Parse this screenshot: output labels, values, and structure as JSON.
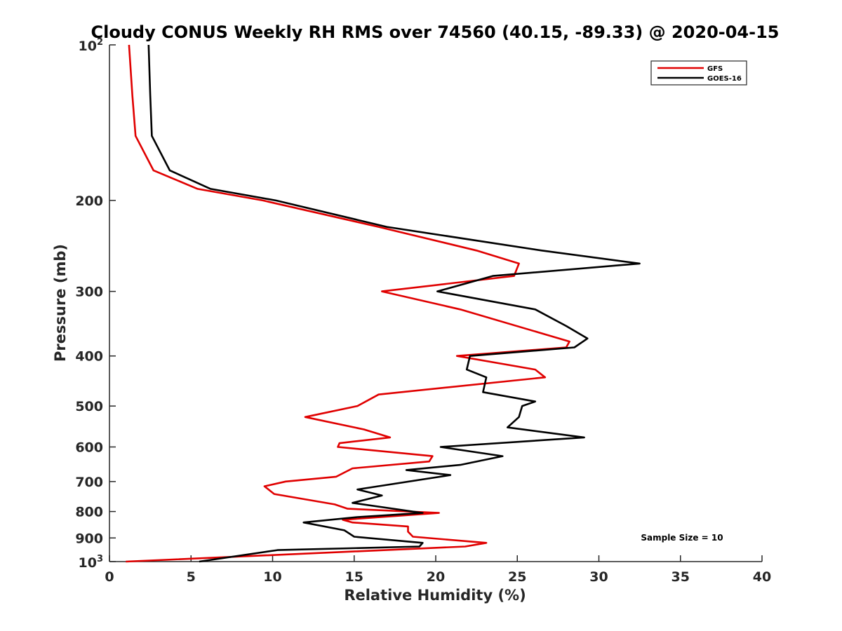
{
  "chart_data": {
    "type": "line",
    "title": "Cloudy CONUS Weekly RH RMS over 74560 (40.15, -89.33) @ 2020-04-15",
    "xlabel": "Relative Humidity (%)",
    "ylabel": "Pressure (mb)",
    "xlim": [
      0,
      40
    ],
    "ylim": [
      100,
      1000
    ],
    "y_scale": "log",
    "y_reversed": true,
    "grid": false,
    "legend_position": "top-right",
    "x_ticks": [
      "0",
      "5",
      "10",
      "15",
      "20",
      "25",
      "30",
      "35",
      "40"
    ],
    "y_ticks": [
      {
        "value": 100,
        "base": "10",
        "exp": "2"
      },
      {
        "value": 200,
        "label": "200"
      },
      {
        "value": 300,
        "label": "300"
      },
      {
        "value": 400,
        "label": "400"
      },
      {
        "value": 500,
        "label": "500"
      },
      {
        "value": 600,
        "label": "600"
      },
      {
        "value": 700,
        "label": "700"
      },
      {
        "value": 800,
        "label": "800"
      },
      {
        "value": 900,
        "label": "900"
      },
      {
        "value": 1000,
        "base": "10",
        "exp": "3"
      }
    ],
    "annotation": "Sample Size = 10",
    "series": [
      {
        "name": "GFS",
        "color": "#e00000",
        "points": [
          [
            1.2,
            100
          ],
          [
            1.4,
            125
          ],
          [
            1.6,
            150
          ],
          [
            2.7,
            175
          ],
          [
            5.4,
            190
          ],
          [
            9.4,
            200
          ],
          [
            16.5,
            225
          ],
          [
            22.5,
            250
          ],
          [
            25.1,
            265
          ],
          [
            24.8,
            280
          ],
          [
            16.7,
            300
          ],
          [
            21.5,
            325
          ],
          [
            28.2,
            375
          ],
          [
            28.0,
            385
          ],
          [
            21.3,
            400
          ],
          [
            26.1,
            425
          ],
          [
            26.7,
            440
          ],
          [
            16.5,
            475
          ],
          [
            15.2,
            500
          ],
          [
            12.0,
            525
          ],
          [
            15.6,
            555
          ],
          [
            17.2,
            575
          ],
          [
            14.1,
            590
          ],
          [
            14.0,
            600
          ],
          [
            19.8,
            625
          ],
          [
            19.6,
            640
          ],
          [
            14.9,
            660
          ],
          [
            13.9,
            685
          ],
          [
            10.8,
            700
          ],
          [
            9.5,
            715
          ],
          [
            10.1,
            740
          ],
          [
            13.8,
            775
          ],
          [
            14.6,
            790
          ],
          [
            20.2,
            805
          ],
          [
            14.3,
            830
          ],
          [
            14.9,
            840
          ],
          [
            18.3,
            855
          ],
          [
            18.3,
            875
          ],
          [
            18.6,
            895
          ],
          [
            23.1,
            920
          ],
          [
            21.8,
            935
          ],
          [
            1.0,
            1000
          ]
        ]
      },
      {
        "name": "GOES-16",
        "color": "#000000",
        "points": [
          [
            2.4,
            100
          ],
          [
            2.5,
            125
          ],
          [
            2.6,
            150
          ],
          [
            3.7,
            175
          ],
          [
            6.2,
            190
          ],
          [
            10.2,
            200
          ],
          [
            17.0,
            225
          ],
          [
            26.5,
            250
          ],
          [
            32.5,
            265
          ],
          [
            23.5,
            280
          ],
          [
            20.1,
            300
          ],
          [
            26.1,
            325
          ],
          [
            28.0,
            350
          ],
          [
            29.3,
            370
          ],
          [
            28.5,
            385
          ],
          [
            22.1,
            400
          ],
          [
            21.9,
            425
          ],
          [
            23.1,
            440
          ],
          [
            22.9,
            470
          ],
          [
            26.1,
            490
          ],
          [
            25.3,
            500
          ],
          [
            25.1,
            525
          ],
          [
            24.4,
            550
          ],
          [
            29.1,
            575
          ],
          [
            20.3,
            600
          ],
          [
            24.1,
            625
          ],
          [
            21.5,
            650
          ],
          [
            18.2,
            665
          ],
          [
            20.9,
            680
          ],
          [
            15.2,
            725
          ],
          [
            16.7,
            745
          ],
          [
            14.9,
            770
          ],
          [
            19.2,
            805
          ],
          [
            15.2,
            820
          ],
          [
            11.9,
            840
          ],
          [
            14.4,
            870
          ],
          [
            15.0,
            895
          ],
          [
            19.2,
            920
          ],
          [
            19.0,
            935
          ],
          [
            10.3,
            950
          ],
          [
            5.5,
            1000
          ]
        ]
      }
    ]
  }
}
